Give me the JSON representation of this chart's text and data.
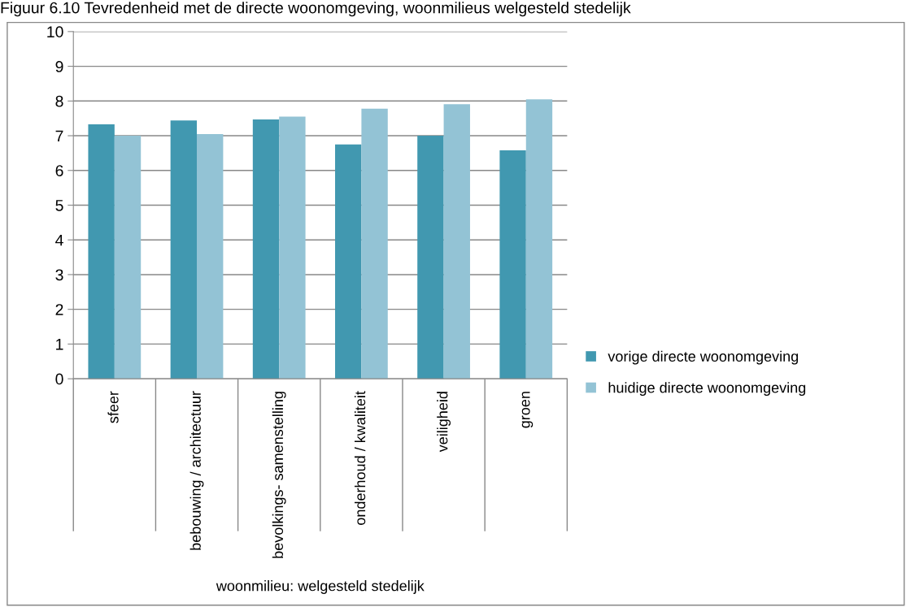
{
  "chart_data": {
    "type": "bar",
    "title": "Figuur 6.10 Tevredenheid met de directe woonomgeving, woonmilieus welgesteld stedelijk",
    "xlabel": "woonmilieu: welgesteld stedelijk",
    "categories": [
      "sfeer",
      "bebouwing / architectuur",
      "bevolkings- samenstelling",
      "onderhoud / kwaliteit",
      "veiligheid",
      "groen"
    ],
    "series": [
      {
        "name": "vorige directe woonomgeving",
        "color": "#4198b0",
        "values": [
          7.33,
          7.44,
          7.47,
          6.75,
          7.0,
          6.58
        ]
      },
      {
        "name": "huidige directe woonomgeving",
        "color": "#93c3d5",
        "values": [
          7.0,
          7.05,
          7.55,
          7.78,
          7.91,
          8.05
        ]
      }
    ],
    "ylim": [
      0,
      10
    ],
    "yticks": [
      0,
      1,
      2,
      3,
      4,
      5,
      6,
      7,
      8,
      9,
      10
    ],
    "grid": "y",
    "legend": "right"
  }
}
